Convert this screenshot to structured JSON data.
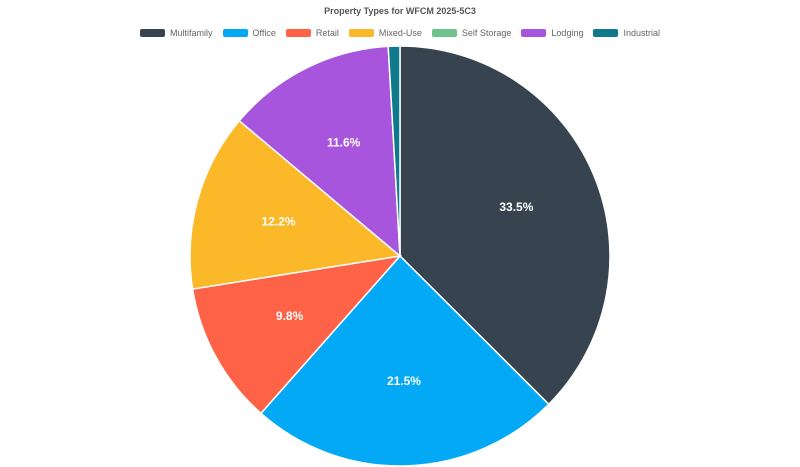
{
  "chart_data": {
    "type": "pie",
    "title": "Property Types for WFCM 2025-5C3",
    "legend_position": "top",
    "slices": [
      {
        "name": "Multifamily",
        "value": 33.5,
        "label": "33.5%",
        "color": "#37444f"
      },
      {
        "name": "Office",
        "value": 21.5,
        "label": "21.5%",
        "color": "#03a9f4"
      },
      {
        "name": "Retail",
        "value": 9.8,
        "label": "9.8%",
        "color": "#ff6347"
      },
      {
        "name": "Mixed-Use",
        "value": 12.2,
        "label": "12.2%",
        "color": "#fbb829"
      },
      {
        "name": "Self Storage",
        "value": 0.0,
        "label": "",
        "color": "#6fc38b"
      },
      {
        "name": "Lodging",
        "value": 11.6,
        "label": "11.6%",
        "color": "#a855dd"
      },
      {
        "name": "Industrial",
        "value": 0.8,
        "label": "",
        "color": "#0e7a8c"
      }
    ]
  }
}
